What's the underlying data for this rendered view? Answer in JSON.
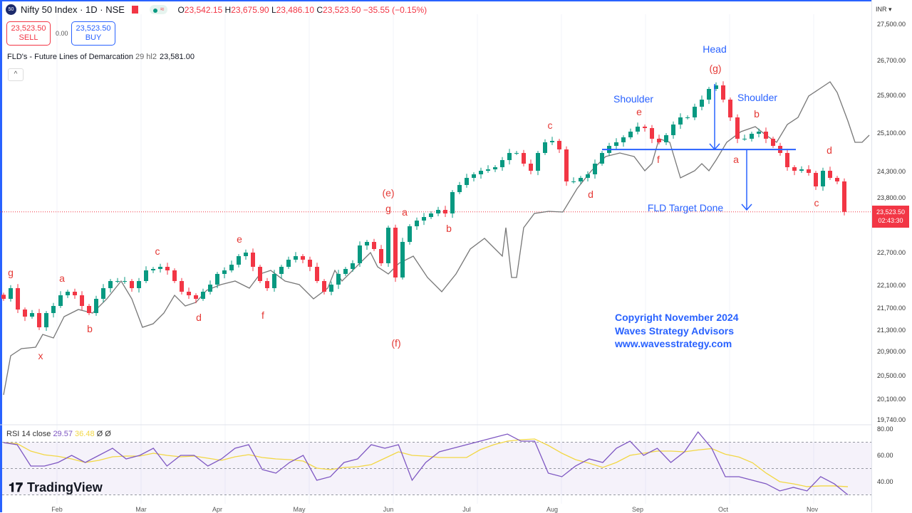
{
  "header": {
    "symbol_logo": "50",
    "title": "Nifty 50 Index · 1D · NSE",
    "ohlc": {
      "o_label": "O",
      "o": "23,542.15",
      "h_label": "H",
      "h": "23,675.90",
      "l_label": "L",
      "l": "23,486.10",
      "c_label": "C",
      "c": "23,523.50",
      "change": "−35.55 (−0.15%)"
    }
  },
  "trade": {
    "sell_price": "23,523.50",
    "sell_label": "SELL",
    "spread": "0.00",
    "buy_price": "23,523.50",
    "buy_label": "BUY"
  },
  "indicator": {
    "name": "FLD's - Future Lines of Demarcation",
    "params": "29 hl2",
    "value": "23,581.00",
    "collapse": "^"
  },
  "axis": {
    "currency": "INR",
    "ticks": [
      "27,500.00",
      "26,700.00",
      "25,900.00",
      "25,100.00",
      "24,300.00",
      "23,800.00",
      "22,700.00",
      "22,100.00",
      "21,700.00",
      "21,300.00",
      "20,900.00",
      "20,500.00",
      "20,100.00",
      "19,740.00"
    ],
    "last_price": "23,523.50",
    "countdown": "02:43:30",
    "rsi_ticks": [
      "80.00",
      "60.00",
      "40.00"
    ]
  },
  "months": [
    "Feb",
    "Mar",
    "Apr",
    "May",
    "Jun",
    "Jul",
    "Aug",
    "Sep",
    "Oct",
    "Nov"
  ],
  "rsi": {
    "label": "RSI 14 close",
    "value": "29.57",
    "ma_value": "36.48",
    "extra1": "Ø",
    "extra2": "Ø",
    "levels": [
      70,
      50,
      30
    ]
  },
  "brand": "TradingView",
  "colors": {
    "up": "#089981",
    "down": "#f23645",
    "fld": "#777777",
    "rsi": "#7e57c2",
    "rsi_ma": "#f2d744",
    "annotation_red": "#e53935",
    "annotation_blue": "#2962ff"
  },
  "annotations": [
    "g",
    "a",
    "b",
    "x",
    "c",
    "d",
    "e",
    "f",
    "(e)",
    "g",
    "(f)",
    "a",
    "b",
    "c",
    "d",
    "e",
    "f",
    "Head",
    "(g)",
    "Shoulder",
    "Shoulder",
    "b",
    "a",
    "d",
    "c",
    "FLD Target Done"
  ],
  "copyright": [
    "Copyright November 2024",
    "Waves Strategy Advisors",
    "www.wavesstrategy.com"
  ],
  "chart_data": {
    "type": "candlestick",
    "closes": [
      21812,
      22022,
      21602,
      21462,
      21532,
      21252,
      21532,
      21672,
      21882,
      21952,
      21882,
      21672,
      21532,
      21812,
      22022,
      22162,
      22162,
      22162,
      22022,
      22162,
      22372,
      22400,
      22442,
      22372,
      22162,
      21952,
      21882,
      21812,
      21952,
      22092,
      22302,
      22372,
      22484,
      22652,
      22722,
      22442,
      22162,
      22022,
      22302,
      22442,
      22582,
      22652,
      22582,
      22442,
      22162,
      21952,
      22092,
      22302,
      22400,
      22512,
      22862,
      22932,
      22792,
      22512,
      23212,
      22232,
      22932,
      23240,
      23352,
      23422,
      23492,
      23562,
      23492,
      23912,
      24052,
      24192,
      24262,
      24332,
      24360,
      24402,
      24542,
      24682,
      24682,
      24472,
      24332,
      24682,
      24892,
      24920,
      24752,
      24122,
      24122,
      24192,
      24262,
      24472,
      24682,
      24822,
      24892,
      24990,
      25102,
      25200,
      25172,
      24962,
      24892,
      25032,
      25242,
      25382,
      25382,
      25592,
      25732,
      25942,
      26012,
      25732,
      25382,
      24962,
      24962,
      25060,
      25102,
      24962,
      24822,
      24682,
      24402,
      24332,
      24360,
      24290,
      24024,
      24332,
      24192,
      24122,
      23523.5
    ],
    "fld": [
      [
        0,
        19922
      ],
      [
        1,
        20692
      ],
      [
        2.5,
        20832
      ],
      [
        4.5,
        20860
      ],
      [
        5.5,
        21112
      ],
      [
        7,
        21042
      ],
      [
        8.5,
        21462
      ],
      [
        10.5,
        21602
      ],
      [
        12.5,
        21532
      ],
      [
        14.5,
        21812
      ],
      [
        16.5,
        22162
      ],
      [
        18,
        21812
      ],
      [
        19.5,
        21252
      ],
      [
        21,
        21322
      ],
      [
        22.5,
        21532
      ],
      [
        24,
        21882
      ],
      [
        25.5,
        21672
      ],
      [
        27,
        21742
      ],
      [
        28.5,
        21980
      ],
      [
        30.5,
        22092
      ],
      [
        32.5,
        22162
      ],
      [
        34.5,
        22022
      ],
      [
        36,
        22302
      ],
      [
        37.5,
        22372
      ],
      [
        39.5,
        22162
      ],
      [
        41.5,
        22092
      ],
      [
        43.5,
        21812
      ],
      [
        45.5,
        22022
      ],
      [
        46.5,
        22372
      ],
      [
        47.5,
        22162
      ],
      [
        49,
        22372
      ],
      [
        50.5,
        22582
      ],
      [
        51.5,
        22722
      ],
      [
        52.5,
        22442
      ],
      [
        54,
        22302
      ],
      [
        55.5,
        22512
      ],
      [
        57.5,
        22652
      ],
      [
        59.5,
        22232
      ],
      [
        61.5,
        21952
      ],
      [
        63.5,
        22302
      ],
      [
        65.5,
        22792
      ],
      [
        67.5,
        23002
      ],
      [
        68.5,
        22862
      ],
      [
        70,
        22652
      ],
      [
        70.5,
        23212
      ],
      [
        71.3,
        22232
      ],
      [
        72,
        22232
      ],
      [
        73,
        23212
      ],
      [
        74.5,
        23492
      ],
      [
        76.5,
        23534
      ],
      [
        78.5,
        23520
      ],
      [
        80.5,
        23982
      ],
      [
        82.5,
        24332
      ],
      [
        84.5,
        24612
      ],
      [
        86.5,
        24682
      ],
      [
        88.5,
        24612
      ],
      [
        90,
        24332
      ],
      [
        91,
        24472
      ],
      [
        92,
        24962
      ],
      [
        93.5,
        24892
      ],
      [
        95,
        24192
      ],
      [
        96,
        24262
      ],
      [
        97,
        24332
      ],
      [
        98,
        24472
      ],
      [
        99,
        24332
      ],
      [
        100,
        24542
      ],
      [
        101.5,
        24892
      ],
      [
        103.5,
        25102
      ],
      [
        105.5,
        25200
      ],
      [
        107,
        25032
      ],
      [
        108.5,
        24892
      ],
      [
        110,
        25242
      ],
      [
        111.5,
        25382
      ],
      [
        113,
        25802
      ],
      [
        114.5,
        25942
      ],
      [
        116,
        26082
      ],
      [
        117,
        25872
      ],
      [
        118.5,
        25312
      ],
      [
        119.5,
        24892
      ],
      [
        120.5,
        24892
      ],
      [
        121.5,
        25032
      ]
    ],
    "neckline": 24750,
    "rsi_values": [
      69.7,
      68.1,
      51.9,
      51.9,
      54.6,
      60,
      54.6,
      60,
      65.4,
      57.3,
      60,
      65.4,
      51.9,
      60,
      60,
      51.9,
      57.3,
      65.4,
      68.1,
      49.2,
      46.5,
      54.6,
      60,
      41.1,
      43.8,
      54.6,
      57.3,
      68.1,
      65.4,
      68.1,
      41.1,
      54.6,
      62.7,
      65.4,
      68.1,
      70.8,
      73.5,
      76.2,
      70.8,
      70.8,
      46.5,
      43.8,
      51.9,
      57.3,
      54.6,
      65.4,
      70.8,
      60,
      65.4,
      54.6,
      62.7,
      77.8,
      65.4,
      43.8,
      43.8,
      41.1,
      38.4,
      33,
      35.7,
      33,
      43.8,
      38.4,
      30
    ],
    "ylim": [
      19740,
      27500
    ],
    "rsi_ylim": [
      20,
      85
    ]
  }
}
